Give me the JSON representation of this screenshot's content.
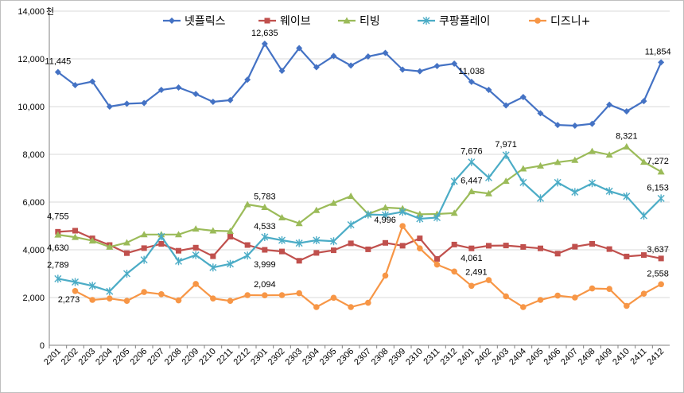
{
  "chart_data": {
    "type": "line",
    "y_unit": "천",
    "ylim": [
      0,
      14000
    ],
    "y_ticks": [
      "0",
      "2,000",
      "4,000",
      "6,000",
      "8,000",
      "10,000",
      "12,000",
      "14,000"
    ],
    "y_tick_values": [
      0,
      2000,
      4000,
      6000,
      8000,
      10000,
      12000,
      14000
    ],
    "grid": "horizontal",
    "legend_position": "top",
    "categories": [
      "2201",
      "2202",
      "2203",
      "2204",
      "2205",
      "2206",
      "2207",
      "2208",
      "2209",
      "2210",
      "2211",
      "2212",
      "2301",
      "2302",
      "2303",
      "2304",
      "2305",
      "2306",
      "2307",
      "2308",
      "2309",
      "2310",
      "2311",
      "2312",
      "2401",
      "2402",
      "2403",
      "2404",
      "2405",
      "2406",
      "2407",
      "2408",
      "2409",
      "2410",
      "2411",
      "2412"
    ],
    "series": [
      {
        "name": "넷플릭스",
        "color": "#4472C4",
        "marker": "diamond",
        "values": [
          11445,
          10900,
          11050,
          10000,
          10120,
          10150,
          10700,
          10800,
          10530,
          10200,
          10270,
          11130,
          12635,
          11500,
          12450,
          11650,
          12120,
          11720,
          12100,
          12250,
          11550,
          11480,
          11700,
          11800,
          11038,
          10700,
          10050,
          10400,
          9720,
          9230,
          9200,
          9280,
          10080,
          9800,
          10230,
          11854
        ]
      },
      {
        "name": "웨이브",
        "color": "#C0504D",
        "marker": "square",
        "values": [
          4755,
          4800,
          4480,
          4200,
          3860,
          4070,
          4250,
          3960,
          4090,
          3730,
          4550,
          4200,
          3999,
          3930,
          3540,
          3870,
          3980,
          4270,
          4020,
          4290,
          4170,
          4480,
          3620,
          4220,
          4061,
          4170,
          4180,
          4120,
          4060,
          3840,
          4130,
          4250,
          4030,
          3720,
          3780,
          3637
        ]
      },
      {
        "name": "티빙",
        "color": "#9BBB59",
        "marker": "triangle",
        "values": [
          4630,
          4530,
          4380,
          4120,
          4300,
          4640,
          4640,
          4640,
          4880,
          4800,
          4780,
          5900,
          5783,
          5350,
          5110,
          5660,
          5960,
          6250,
          5500,
          5770,
          5730,
          5490,
          5500,
          5540,
          6447,
          6360,
          6880,
          7400,
          7520,
          7670,
          7760,
          8130,
          7980,
          8321,
          7680,
          7272
        ]
      },
      {
        "name": "쿠팡플레이",
        "color": "#4BACC6",
        "marker": "star",
        "values": [
          2789,
          2650,
          2490,
          2260,
          3000,
          3580,
          4560,
          3520,
          3780,
          3260,
          3410,
          3760,
          4533,
          4400,
          4280,
          4400,
          4360,
          5050,
          5480,
          5460,
          5590,
          5300,
          5350,
          6870,
          7676,
          7020,
          7971,
          6820,
          6160,
          6820,
          6420,
          6790,
          6460,
          6240,
          5430,
          6153
        ]
      },
      {
        "name": "디즈니+",
        "color": "#F79646",
        "marker": "circle",
        "values": [
          null,
          2273,
          1900,
          1960,
          1860,
          2230,
          2140,
          1880,
          2570,
          1960,
          1860,
          2100,
          2094,
          2100,
          2180,
          1600,
          1990,
          1600,
          1780,
          2920,
          4996,
          4060,
          3380,
          3090,
          2491,
          2730,
          2050,
          1600,
          1900,
          2080,
          2000,
          2380,
          2360,
          1650,
          2160,
          2558
        ]
      }
    ],
    "annotations": [
      {
        "series": 0,
        "index": 0,
        "text": "11,445",
        "color": "#000000"
      },
      {
        "series": 0,
        "index": 12,
        "text": "12,635",
        "color": "#FF0000"
      },
      {
        "series": 0,
        "index": 24,
        "text": "11,038",
        "color": "#000000"
      },
      {
        "series": 0,
        "index": 35,
        "text": "11,854",
        "color": "#000000"
      },
      {
        "series": 1,
        "index": 0,
        "text": "4,755",
        "color": "#FF0000"
      },
      {
        "series": 1,
        "index": 12,
        "text": "3,999",
        "color": "#000000"
      },
      {
        "series": 1,
        "index": 24,
        "text": "4,061",
        "color": "#000000"
      },
      {
        "series": 1,
        "index": 35,
        "text": "3,637",
        "color": "#000000"
      },
      {
        "series": 2,
        "index": 0,
        "text": "4,630",
        "color": "#000000"
      },
      {
        "series": 2,
        "index": 12,
        "text": "5,783",
        "color": "#000000"
      },
      {
        "series": 2,
        "index": 24,
        "text": "6,447",
        "color": "#000000"
      },
      {
        "series": 2,
        "index": 33,
        "text": "8,321",
        "color": "#FF0000"
      },
      {
        "series": 2,
        "index": 35,
        "text": "7,272",
        "color": "#000000"
      },
      {
        "series": 3,
        "index": 0,
        "text": "2,789",
        "color": "#000000"
      },
      {
        "series": 3,
        "index": 12,
        "text": "4,533",
        "color": "#000000"
      },
      {
        "series": 3,
        "index": 24,
        "text": "7,676",
        "color": "#000000"
      },
      {
        "series": 3,
        "index": 26,
        "text": "7,971",
        "color": "#FF0000"
      },
      {
        "series": 3,
        "index": 35,
        "text": "6,153",
        "color": "#000000"
      },
      {
        "series": 4,
        "index": 1,
        "text": "2,273",
        "color": "#000000"
      },
      {
        "series": 4,
        "index": 12,
        "text": "2,094",
        "color": "#000000"
      },
      {
        "series": 4,
        "index": 20,
        "text": "4,996",
        "color": "#FF0000"
      },
      {
        "series": 4,
        "index": 24,
        "text": "2,491",
        "color": "#000000"
      },
      {
        "series": 4,
        "index": 35,
        "text": "2,558",
        "color": "#000000"
      }
    ]
  }
}
